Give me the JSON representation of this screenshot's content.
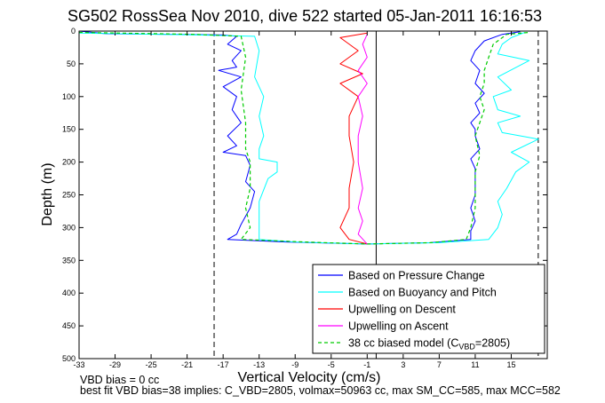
{
  "chart_data": {
    "type": "line",
    "title": "SG502 RossSea Nov 2010, dive 522 started 05-Jan-2011 16:16:53",
    "xlabel": "Vertical Velocity (cm/s)",
    "ylabel": "Depth (m)",
    "xlim": [
      -33,
      19
    ],
    "ylim": [
      500,
      0
    ],
    "y_reversed": true,
    "xticks": [
      -33,
      -29,
      -25,
      -21,
      -17,
      -13,
      -9,
      -5,
      -1,
      3,
      7,
      11,
      15
    ],
    "yticks": [
      0,
      50,
      100,
      150,
      200,
      250,
      300,
      350,
      400,
      450,
      500
    ],
    "grid": false,
    "legend_position": "bottom-right",
    "reference_lines": [
      {
        "x": -18,
        "style": "dashed",
        "color": "#000000"
      },
      {
        "x": 18,
        "style": "dashed",
        "color": "#000000"
      },
      {
        "x": 0,
        "style": "solid",
        "color": "#000000"
      }
    ],
    "series": [
      {
        "name": "Based on Pressure Change",
        "color": "#0000ff",
        "style": "solid",
        "points": [
          [
            -33,
            0
          ],
          [
            -30,
            4
          ],
          [
            -22,
            5
          ],
          [
            -17,
            6
          ],
          [
            -15.5,
            8
          ],
          [
            -16.5,
            20
          ],
          [
            -15,
            30
          ],
          [
            -16,
            45
          ],
          [
            -15.5,
            55
          ],
          [
            -17.5,
            60
          ],
          [
            -15,
            70
          ],
          [
            -17,
            85
          ],
          [
            -15.5,
            100
          ],
          [
            -16,
            120
          ],
          [
            -15,
            140
          ],
          [
            -16.5,
            160
          ],
          [
            -15.5,
            175
          ],
          [
            -17,
            185
          ],
          [
            -14.5,
            190
          ],
          [
            -14,
            205
          ],
          [
            -14.5,
            230
          ],
          [
            -13.5,
            245
          ],
          [
            -14,
            270
          ],
          [
            -15,
            295
          ],
          [
            -15.5,
            310
          ],
          [
            -16.5,
            318
          ],
          [
            -10,
            322
          ],
          [
            -1,
            325
          ],
          [
            6,
            323
          ],
          [
            10.5,
            318
          ],
          [
            10.5,
            305
          ],
          [
            11,
            290
          ],
          [
            10.5,
            270
          ],
          [
            11,
            250
          ],
          [
            11,
            230
          ],
          [
            11,
            210
          ],
          [
            10.5,
            195
          ],
          [
            11.5,
            180
          ],
          [
            11,
            160
          ],
          [
            11,
            150
          ],
          [
            10.5,
            140
          ],
          [
            11.5,
            125
          ],
          [
            11,
            110
          ],
          [
            12,
            95
          ],
          [
            11,
            80
          ],
          [
            11.5,
            60
          ],
          [
            10.5,
            45
          ],
          [
            11,
            30
          ],
          [
            12,
            15
          ],
          [
            14,
            5
          ],
          [
            16,
            1
          ]
        ]
      },
      {
        "name": "Based on Buoyancy and Pitch",
        "color": "#00ffff",
        "style": "solid",
        "points": [
          [
            -33,
            3
          ],
          [
            -20,
            6
          ],
          [
            -13.5,
            8
          ],
          [
            -13,
            30
          ],
          [
            -13.5,
            70
          ],
          [
            -12.5,
            100
          ],
          [
            -13,
            130
          ],
          [
            -12.5,
            160
          ],
          [
            -13,
            180
          ],
          [
            -13,
            195
          ],
          [
            -11,
            200
          ],
          [
            -11,
            215
          ],
          [
            -12,
            225
          ],
          [
            -13,
            260
          ],
          [
            -13,
            300
          ],
          [
            -13,
            318
          ],
          [
            -9,
            322
          ],
          [
            -1,
            325
          ],
          [
            7,
            323
          ],
          [
            12.5,
            318
          ],
          [
            13.5,
            300
          ],
          [
            14,
            280
          ],
          [
            13.5,
            260
          ],
          [
            14.5,
            240
          ],
          [
            15.5,
            215
          ],
          [
            17,
            200
          ],
          [
            15,
            185
          ],
          [
            18,
            165
          ],
          [
            14,
            155
          ],
          [
            13.5,
            140
          ],
          [
            16,
            130
          ],
          [
            13.5,
            120
          ],
          [
            13,
            100
          ],
          [
            15,
            90
          ],
          [
            13.5,
            70
          ],
          [
            17,
            45
          ],
          [
            13.5,
            35
          ],
          [
            14,
            20
          ],
          [
            15,
            10
          ],
          [
            16.5,
            2
          ]
        ]
      },
      {
        "name": "Upwelling on Descent",
        "color": "#ff0000",
        "style": "solid",
        "points": [
          [
            -1,
            3
          ],
          [
            -4,
            10
          ],
          [
            -2,
            30
          ],
          [
            -4,
            50
          ],
          [
            -1.5,
            65
          ],
          [
            -4,
            80
          ],
          [
            -2,
            100
          ],
          [
            -3,
            130
          ],
          [
            -3,
            160
          ],
          [
            -2.5,
            200
          ],
          [
            -3,
            240
          ],
          [
            -3,
            270
          ],
          [
            -4,
            300
          ],
          [
            -3,
            318
          ],
          [
            -1,
            325
          ]
        ]
      },
      {
        "name": "Upwelling on Ascent",
        "color": "#ff00ff",
        "style": "solid",
        "points": [
          [
            -1,
            325
          ],
          [
            -2,
            310
          ],
          [
            -1.5,
            290
          ],
          [
            -2,
            270
          ],
          [
            -1.5,
            240
          ],
          [
            -2,
            200
          ],
          [
            -2,
            160
          ],
          [
            -1.5,
            130
          ],
          [
            -2,
            100
          ],
          [
            -1,
            80
          ],
          [
            -2,
            60
          ],
          [
            -1,
            40
          ],
          [
            -1.5,
            20
          ],
          [
            -1,
            5
          ]
        ]
      },
      {
        "name": "38 cc biased model (C_VBD=2805)",
        "color": "#00cc00",
        "style": "dashed",
        "points": [
          [
            -33,
            2
          ],
          [
            -20,
            5
          ],
          [
            -15,
            8
          ],
          [
            -14.5,
            40
          ],
          [
            -15,
            90
          ],
          [
            -14.5,
            140
          ],
          [
            -14.5,
            180
          ],
          [
            -14,
            200
          ],
          [
            -14,
            240
          ],
          [
            -14.5,
            270
          ],
          [
            -14,
            300
          ],
          [
            -15,
            318
          ],
          [
            -8,
            322
          ],
          [
            -1,
            325
          ],
          [
            6,
            323
          ],
          [
            10,
            318
          ],
          [
            10.5,
            300
          ],
          [
            11,
            270
          ],
          [
            11,
            240
          ],
          [
            11,
            215
          ],
          [
            11.5,
            190
          ],
          [
            11,
            160
          ],
          [
            11.5,
            140
          ],
          [
            12,
            120
          ],
          [
            11.5,
            100
          ],
          [
            12,
            80
          ],
          [
            12,
            60
          ],
          [
            12.5,
            40
          ],
          [
            13,
            20
          ],
          [
            14.5,
            5
          ],
          [
            17,
            2
          ]
        ]
      }
    ],
    "legend": [
      {
        "label": "Based on Pressure Change",
        "color": "#0000ff",
        "style": "solid"
      },
      {
        "label": "Based on Buoyancy and Pitch",
        "color": "#00ffff",
        "style": "solid"
      },
      {
        "label": "Upwelling on Descent",
        "color": "#ff0000",
        "style": "solid"
      },
      {
        "label": "Upwelling on Ascent",
        "color": "#ff00ff",
        "style": "solid"
      },
      {
        "label": "38 cc biased model (C",
        "sub": "VBD",
        "suffix": "=2805)",
        "color": "#00cc00",
        "style": "dashed"
      }
    ],
    "annotations": [
      "VBD bias = 0 cc",
      "best fit VBD bias=38 implies: C_VBD=2805, volmax=50963 cc, max SM_CC=585, max MCC=582"
    ]
  }
}
